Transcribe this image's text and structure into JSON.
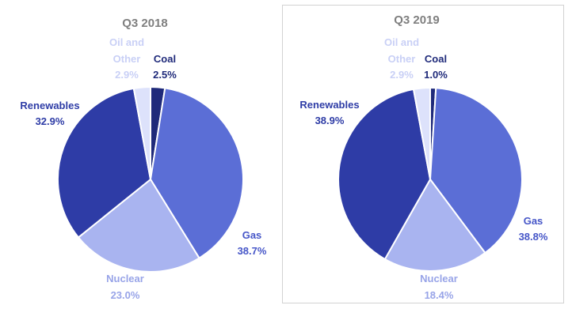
{
  "chart_data": [
    {
      "type": "pie",
      "title": "Q3 2018",
      "slices": [
        {
          "name": "Coal",
          "value": 2.5,
          "label": "2.5%",
          "color": "#1f2a7a",
          "text_color": "#1f2a7a"
        },
        {
          "name": "Gas",
          "value": 38.7,
          "label": "38.7%",
          "color": "#5b6ed6",
          "text_color": "#4656c8"
        },
        {
          "name": "Nuclear",
          "value": 23.0,
          "label": "23.0%",
          "color": "#a9b4f0",
          "text_color": "#98a4e8"
        },
        {
          "name": "Renewables",
          "value": 32.9,
          "label": "32.9%",
          "color": "#2e3ca6",
          "text_color": "#2e3ca6"
        },
        {
          "name": "Oil and Other",
          "name_lines": [
            "Oil and",
            "Other"
          ],
          "value": 2.9,
          "label": "2.9%",
          "color": "#dde2fb",
          "text_color": "#c9d0f6"
        }
      ]
    },
    {
      "type": "pie",
      "title": "Q3 2019",
      "slices": [
        {
          "name": "Coal",
          "value": 1.0,
          "label": "1.0%",
          "color": "#1f2a7a",
          "text_color": "#1f2a7a"
        },
        {
          "name": "Gas",
          "value": 38.8,
          "label": "38.8%",
          "color": "#5b6ed6",
          "text_color": "#4656c8"
        },
        {
          "name": "Nuclear",
          "value": 18.4,
          "label": "18.4%",
          "color": "#a9b4f0",
          "text_color": "#98a4e8"
        },
        {
          "name": "Renewables",
          "value": 38.9,
          "label": "38.9%",
          "color": "#2e3ca6",
          "text_color": "#2e3ca6"
        },
        {
          "name": "Oil and Other",
          "name_lines": [
            "Oil and",
            "Other"
          ],
          "value": 2.9,
          "label": "2.9%",
          "color": "#dde2fb",
          "text_color": "#c9d0f6"
        }
      ]
    }
  ]
}
